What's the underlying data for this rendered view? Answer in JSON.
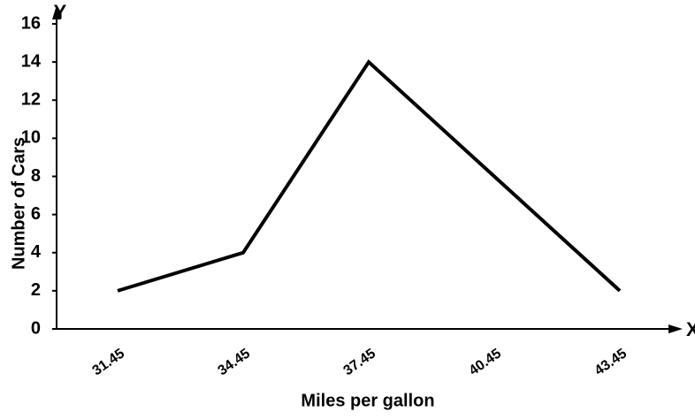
{
  "chart_data": {
    "type": "line",
    "x_label": "Miles per gallon",
    "y_label": "Number of Cars",
    "x_axis_symbol": "X",
    "y_axis_symbol": "Y",
    "categories": [
      "31.45",
      "34.45",
      "37.45",
      "40.45",
      "43.45"
    ],
    "values": [
      2,
      4,
      14,
      8,
      2
    ],
    "color": "#000000",
    "ylim": [
      0,
      16
    ],
    "yticks": [
      0,
      2,
      4,
      6,
      8,
      10,
      12,
      14,
      16
    ],
    "grid": false
  }
}
